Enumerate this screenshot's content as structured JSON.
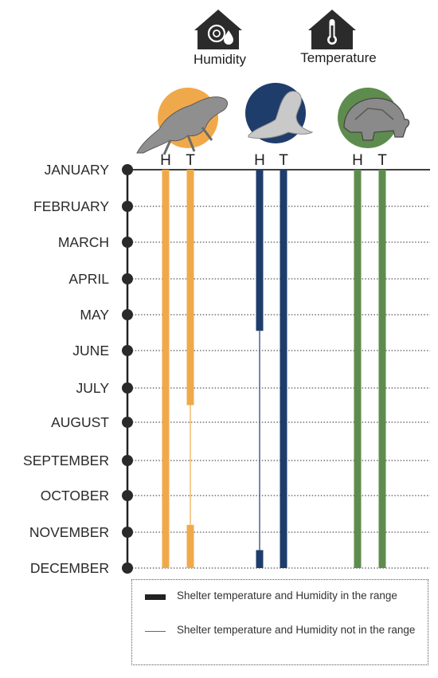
{
  "header": {
    "humidity_label": "Humidity",
    "temperature_label": "Temperature",
    "humidity_icon": "house-humidity-icon",
    "temperature_icon": "house-thermometer-icon"
  },
  "months": [
    "JANUARY",
    "FEBRUARY",
    "MARCH",
    "APRIL",
    "MAY",
    "JUNE",
    "JULY",
    "AUGUST",
    "SEPTEMBER",
    "OCTOBER",
    "NOVEMBER",
    "DECEMBER"
  ],
  "species": [
    {
      "key": "iguana",
      "icon": "iguana-icon",
      "color": "#f0a94a",
      "h_label": "H",
      "t_label": "T",
      "humidity_segments": [
        {
          "from": 1,
          "to": 12,
          "in_range": true
        }
      ],
      "temperature_segments": [
        {
          "from": 1,
          "to": 7.5,
          "in_range": true
        },
        {
          "from": 7.5,
          "to": 10.8,
          "in_range": false
        },
        {
          "from": 10.8,
          "to": 12,
          "in_range": true
        }
      ]
    },
    {
      "key": "sea-lion",
      "icon": "sea-lion-icon",
      "color": "#1f3d6b",
      "h_label": "H",
      "t_label": "T",
      "humidity_segments": [
        {
          "from": 1,
          "to": 5.45,
          "in_range": true
        },
        {
          "from": 5.45,
          "to": 11.5,
          "in_range": false
        },
        {
          "from": 11.5,
          "to": 12,
          "in_range": true
        }
      ],
      "temperature_segments": [
        {
          "from": 1,
          "to": 12,
          "in_range": true
        }
      ]
    },
    {
      "key": "tortoise",
      "icon": "tortoise-icon",
      "color": "#5e8c4e",
      "h_label": "H",
      "t_label": "T",
      "humidity_segments": [
        {
          "from": 1,
          "to": 12,
          "in_range": true
        }
      ],
      "temperature_segments": [
        {
          "from": 1,
          "to": 12,
          "in_range": true
        }
      ]
    }
  ],
  "legend": {
    "in_range": "Shelter temperature and Humidity in the range",
    "not_in_range": "Shelter temperature and Humidity not in the range"
  }
}
